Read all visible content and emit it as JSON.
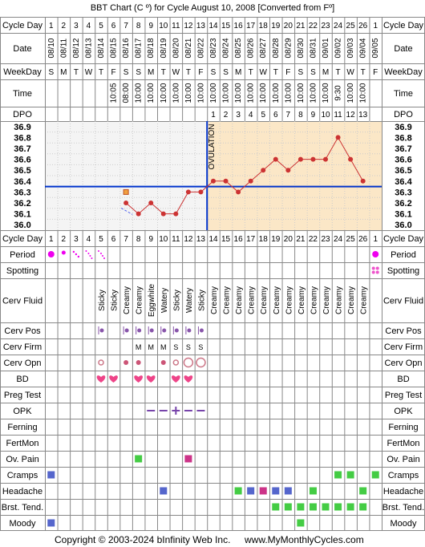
{
  "title": "BBT Chart (C º) for Cycle August 10, 2008  [Converted from Fº]",
  "footer": {
    "copyright": "Copyright © 2003-2024 bInfinity Web Inc.",
    "site": "www.MyMonthlyCycles.com"
  },
  "row_labels": {
    "cycle_day": "Cycle Day",
    "date": "Date",
    "weekday": "WeekDay",
    "time": "Time",
    "dpo": "DPO",
    "period": "Period",
    "spotting": "Spotting",
    "cerv_fluid": "Cerv Fluid",
    "cerv_pos": "Cerv Pos",
    "cerv_firm": "Cerv Firm",
    "cerv_opn": "Cerv Opn",
    "bd": "BD",
    "preg_test": "Preg Test",
    "opk": "OPK",
    "ferning": "Ferning",
    "fertmon": "FertMon",
    "ov_pain": "Ov. Pain",
    "cramps": "Cramps",
    "headache": "Headache",
    "brst_tend": "Brst. Tend.",
    "moody": "Moody"
  },
  "ovulation_label": "OVULATION",
  "chart_data": {
    "type": "line",
    "title": "BBT Chart (C º) for Cycle August 10, 2008  [Converted from Fº]",
    "ylabel": "",
    "ylim": [
      36.0,
      36.9
    ],
    "y_ticks": [
      "36.9",
      "36.8",
      "36.7",
      "36.6",
      "36.5",
      "36.4",
      "36.3",
      "36.2",
      "36.1",
      "36.0"
    ],
    "coverline": 36.35,
    "ovulation_after_day": 13,
    "days": [
      {
        "cd": "1",
        "date": "08/10",
        "wd": "S",
        "time": "",
        "dpo": ""
      },
      {
        "cd": "2",
        "date": "08/11",
        "wd": "M",
        "time": "",
        "dpo": ""
      },
      {
        "cd": "3",
        "date": "08/12",
        "wd": "T",
        "time": "",
        "dpo": ""
      },
      {
        "cd": "4",
        "date": "08/13",
        "wd": "W",
        "time": "",
        "dpo": ""
      },
      {
        "cd": "5",
        "date": "08/14",
        "wd": "T",
        "time": "",
        "dpo": ""
      },
      {
        "cd": "6",
        "date": "08/15",
        "wd": "F",
        "time": "10:05",
        "dpo": ""
      },
      {
        "cd": "7",
        "date": "08/16",
        "wd": "S",
        "time": "08:00",
        "dpo": ""
      },
      {
        "cd": "8",
        "date": "08/17",
        "wd": "S",
        "time": "10:00",
        "dpo": ""
      },
      {
        "cd": "9",
        "date": "08/18",
        "wd": "M",
        "time": "10:00",
        "dpo": ""
      },
      {
        "cd": "10",
        "date": "08/19",
        "wd": "T",
        "time": "10:00",
        "dpo": ""
      },
      {
        "cd": "11",
        "date": "08/20",
        "wd": "W",
        "time": "10:00",
        "dpo": ""
      },
      {
        "cd": "12",
        "date": "08/21",
        "wd": "T",
        "time": "10:00",
        "dpo": ""
      },
      {
        "cd": "13",
        "date": "08/22",
        "wd": "F",
        "time": "10:00",
        "dpo": ""
      },
      {
        "cd": "14",
        "date": "08/23",
        "wd": "S",
        "time": "10:00",
        "dpo": "1"
      },
      {
        "cd": "15",
        "date": "08/24",
        "wd": "S",
        "time": "10:00",
        "dpo": "2"
      },
      {
        "cd": "16",
        "date": "08/25",
        "wd": "M",
        "time": "10:00",
        "dpo": "3"
      },
      {
        "cd": "17",
        "date": "08/26",
        "wd": "T",
        "time": "10:00",
        "dpo": "4"
      },
      {
        "cd": "18",
        "date": "08/27",
        "wd": "W",
        "time": "10:00",
        "dpo": "5"
      },
      {
        "cd": "19",
        "date": "08/28",
        "wd": "T",
        "time": "10:00",
        "dpo": "6"
      },
      {
        "cd": "20",
        "date": "08/29",
        "wd": "F",
        "time": "10:00",
        "dpo": "7"
      },
      {
        "cd": "21",
        "date": "08/30",
        "wd": "S",
        "time": "10:00",
        "dpo": "8"
      },
      {
        "cd": "22",
        "date": "08/31",
        "wd": "S",
        "time": "10:00",
        "dpo": "9"
      },
      {
        "cd": "23",
        "date": "09/01",
        "wd": "M",
        "time": "10:00",
        "dpo": "10"
      },
      {
        "cd": "24",
        "date": "09/02",
        "wd": "T",
        "time": "9:30",
        "dpo": "11"
      },
      {
        "cd": "25",
        "date": "09/03",
        "wd": "W",
        "time": "10:00",
        "dpo": "12"
      },
      {
        "cd": "26",
        "date": "09/04",
        "wd": "T",
        "time": "10:00",
        "dpo": "13"
      },
      {
        "cd": "1",
        "date": "09/05",
        "wd": "F",
        "time": "",
        "dpo": ""
      }
    ],
    "temperatures": [
      {
        "day": 7,
        "value": 36.2,
        "discarded": false
      },
      {
        "day": 7,
        "value": 36.3,
        "discarded": true,
        "marker": "square"
      },
      {
        "day": 8,
        "value": 36.1,
        "discarded": false
      },
      {
        "day": 9,
        "value": 36.2,
        "discarded": false
      },
      {
        "day": 10,
        "value": 36.1,
        "discarded": false
      },
      {
        "day": 11,
        "value": 36.1,
        "discarded": false
      },
      {
        "day": 12,
        "value": 36.3,
        "discarded": false
      },
      {
        "day": 13,
        "value": 36.3,
        "discarded": false
      },
      {
        "day": 14,
        "value": 36.4,
        "discarded": false
      },
      {
        "day": 15,
        "value": 36.4,
        "discarded": false
      },
      {
        "day": 16,
        "value": 36.3,
        "discarded": false
      },
      {
        "day": 17,
        "value": 36.4,
        "discarded": false
      },
      {
        "day": 18,
        "value": 36.5,
        "discarded": false
      },
      {
        "day": 19,
        "value": 36.6,
        "discarded": false
      },
      {
        "day": 20,
        "value": 36.5,
        "discarded": false
      },
      {
        "day": 21,
        "value": 36.6,
        "discarded": false
      },
      {
        "day": 22,
        "value": 36.6,
        "discarded": false
      },
      {
        "day": 23,
        "value": 36.6,
        "discarded": false
      },
      {
        "day": 24,
        "value": 36.8,
        "discarded": false
      },
      {
        "day": 25,
        "value": 36.6,
        "discarded": false
      },
      {
        "day": 26,
        "value": 36.4,
        "discarded": false
      }
    ],
    "period": [
      {
        "day": 1,
        "level": "heavy"
      },
      {
        "day": 2,
        "level": "medium"
      },
      {
        "day": 3,
        "level": "light"
      },
      {
        "day": 4,
        "level": "spotty"
      },
      {
        "day": 5,
        "level": "spotty"
      },
      {
        "day": 27,
        "level": "heavy"
      }
    ],
    "spotting": [
      27
    ],
    "cerv_fluid": {
      "5": "Sticky",
      "6": "Sticky",
      "7": "Creamy",
      "8": "Creamy",
      "9": "Eggwhite",
      "10": "Watery",
      "11": "Sticky",
      "12": "Watery",
      "13": "Sticky",
      "14": "Creamy",
      "15": "Creamy",
      "16": "Creamy",
      "17": "Creamy",
      "18": "Creamy",
      "19": "Creamy",
      "20": "Creamy",
      "21": "Creamy",
      "22": "Creamy",
      "23": "Creamy",
      "24": "Creamy",
      "25": "Creamy",
      "26": "Creamy"
    },
    "cerv_pos": [
      5,
      7,
      8,
      9,
      10,
      11,
      12,
      13
    ],
    "cerv_firm": {
      "8": "M",
      "9": "M",
      "10": "M",
      "11": "S",
      "12": "S",
      "13": "S"
    },
    "cerv_opn": [
      {
        "day": 5,
        "size": "small"
      },
      {
        "day": 7,
        "size": "filled"
      },
      {
        "day": 8,
        "size": "filled"
      },
      {
        "day": 10,
        "size": "filled"
      },
      {
        "day": 11,
        "size": "small"
      },
      {
        "day": 12,
        "size": "large"
      },
      {
        "day": 13,
        "size": "large"
      }
    ],
    "bd": [
      5,
      6,
      8,
      9,
      11,
      12
    ],
    "opk": [
      {
        "day": 9,
        "result": "negative"
      },
      {
        "day": 10,
        "result": "negative"
      },
      {
        "day": 11,
        "result": "positive"
      },
      {
        "day": 12,
        "result": "negative"
      },
      {
        "day": 13,
        "result": "negative"
      }
    ],
    "symptoms": {
      "ov_pain": [
        {
          "day": 8,
          "color": "#44cc44"
        },
        {
          "day": 12,
          "color": "#cc3388"
        }
      ],
      "cramps": [
        {
          "day": 1,
          "color": "#5566cc"
        },
        {
          "day": 24,
          "color": "#44cc44"
        },
        {
          "day": 25,
          "color": "#44cc44"
        },
        {
          "day": 27,
          "color": "#44cc44"
        }
      ],
      "headache": [
        {
          "day": 10,
          "color": "#5566cc"
        },
        {
          "day": 16,
          "color": "#44cc44"
        },
        {
          "day": 17,
          "color": "#5566cc"
        },
        {
          "day": 18,
          "color": "#cc3388"
        },
        {
          "day": 19,
          "color": "#5566cc"
        },
        {
          "day": 20,
          "color": "#5566cc"
        },
        {
          "day": 22,
          "color": "#44cc44"
        },
        {
          "day": 26,
          "color": "#44cc44"
        }
      ],
      "brst_tend": [
        {
          "day": 19,
          "color": "#44cc44"
        },
        {
          "day": 20,
          "color": "#44cc44"
        },
        {
          "day": 21,
          "color": "#44cc44"
        },
        {
          "day": 22,
          "color": "#44cc44"
        },
        {
          "day": 23,
          "color": "#44cc44"
        },
        {
          "day": 24,
          "color": "#44cc44"
        },
        {
          "day": 25,
          "color": "#44cc44"
        },
        {
          "day": 26,
          "color": "#44cc44"
        }
      ],
      "moody": [
        {
          "day": 1,
          "color": "#5566cc"
        },
        {
          "day": 21,
          "color": "#44cc44"
        }
      ]
    }
  },
  "colors": {
    "border": "#888888",
    "grid": "#cccccc",
    "plot_bg": "#f4f4f4",
    "luteal_bg": "#fbe7c7",
    "ovulation_line": "#0033cc",
    "coverline": "#0033cc",
    "temp_line": "#cc3333",
    "discard_line": "#5566ee",
    "period": "#ee00ee",
    "spotting": "#ee55cc",
    "bd": "#ee4488",
    "cerv_pos": "#8855aa",
    "cerv_firm": "#9966bb",
    "cerv_opn_filled": "#cc5577",
    "cerv_opn_outline": "#cc7788",
    "opk_negative": "#7744aa",
    "opk_positive": "#7744aa"
  }
}
